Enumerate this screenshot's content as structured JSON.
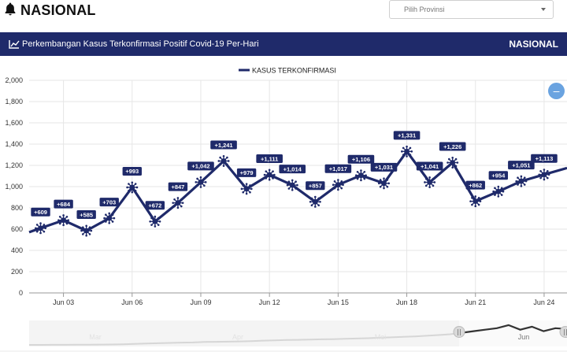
{
  "header": {
    "page_title": "NASIONAL",
    "province_placeholder": "Pilih Provinsi"
  },
  "panel": {
    "title": "Perkembangan Kasus Terkonfirmasi Positif Covid-19 Per-Hari",
    "region_label": "NASIONAL",
    "collapse_symbol": "–"
  },
  "colors": {
    "header_bg": "#1f2a6a",
    "series": "#1f2a6a",
    "label_bg": "#1f2a6a",
    "button": "#6aa3e0"
  },
  "icons": {
    "title_icon": "bell-icon",
    "header_icon": "line-chart-icon",
    "marker": "virus-icon"
  },
  "chart_data": {
    "type": "line",
    "xlabel": "",
    "ylabel": "",
    "ylim": [
      0,
      2000
    ],
    "yticks": [
      0,
      200,
      400,
      600,
      800,
      1000,
      1200,
      1400,
      1600,
      1800,
      2000
    ],
    "ytick_labels": [
      "0",
      "200",
      "400",
      "600",
      "800",
      "1,000",
      "1,200",
      "1,400",
      "1,600",
      "1,800",
      "2,000"
    ],
    "xticks": [
      {
        "day": 3,
        "label": "Jun 03"
      },
      {
        "day": 6,
        "label": "Jun 06"
      },
      {
        "day": 9,
        "label": "Jun 09"
      },
      {
        "day": 12,
        "label": "Jun 12"
      },
      {
        "day": 15,
        "label": "Jun 15"
      },
      {
        "day": 18,
        "label": "Jun 18"
      },
      {
        "day": 21,
        "label": "Jun 21"
      },
      {
        "day": 24,
        "label": "Jun 24"
      }
    ],
    "xrange": [
      1.5,
      25.0
    ],
    "grid": true,
    "legend": "top-center",
    "series": [
      {
        "name": "KASUS TERKONFIRMASI",
        "points": [
          {
            "day": 2,
            "value": 609,
            "label": "+609"
          },
          {
            "day": 3,
            "value": 684,
            "label": "+684"
          },
          {
            "day": 4,
            "value": 585,
            "label": "+585"
          },
          {
            "day": 5,
            "value": 703,
            "label": "+703"
          },
          {
            "day": 6,
            "value": 993,
            "label": "+993"
          },
          {
            "day": 7,
            "value": 672,
            "label": "+672"
          },
          {
            "day": 8,
            "value": 847,
            "label": "+847"
          },
          {
            "day": 9,
            "value": 1042,
            "label": "+1,042"
          },
          {
            "day": 10,
            "value": 1241,
            "label": "+1,241"
          },
          {
            "day": 11,
            "value": 979,
            "label": "+979"
          },
          {
            "day": 12,
            "value": 1111,
            "label": "+1,111"
          },
          {
            "day": 13,
            "value": 1014,
            "label": "+1,014"
          },
          {
            "day": 14,
            "value": 857,
            "label": "+857"
          },
          {
            "day": 15,
            "value": 1017,
            "label": "+1,017"
          },
          {
            "day": 16,
            "value": 1106,
            "label": "+1,106"
          },
          {
            "day": 17,
            "value": 1031,
            "label": "+1,031"
          },
          {
            "day": 18,
            "value": 1331,
            "label": "+1,331"
          },
          {
            "day": 19,
            "value": 1041,
            "label": "+1,041"
          },
          {
            "day": 20,
            "value": 1226,
            "label": "+1,226"
          },
          {
            "day": 21,
            "value": 862,
            "label": "+862"
          },
          {
            "day": 22,
            "value": 954,
            "label": "+954"
          },
          {
            "day": 23,
            "value": 1051,
            "label": "+1,051"
          },
          {
            "day": 24,
            "value": 1113,
            "label": "+1,113"
          }
        ]
      }
    ],
    "navigator": {
      "labels": [
        "Mar",
        "Apr",
        "Mei",
        "Jun"
      ],
      "history": [
        2,
        2,
        3,
        4,
        8,
        15,
        20,
        25,
        40,
        60,
        90,
        110,
        130,
        150,
        160,
        190,
        200,
        210,
        230,
        250,
        280,
        300,
        320,
        330,
        350,
        370,
        380,
        400,
        420,
        440,
        470,
        500,
        530,
        560,
        600,
        650,
        700,
        800,
        900,
        1000,
        1100,
        1300,
        1000,
        1200,
        900,
        1100,
        1050
      ]
    }
  }
}
